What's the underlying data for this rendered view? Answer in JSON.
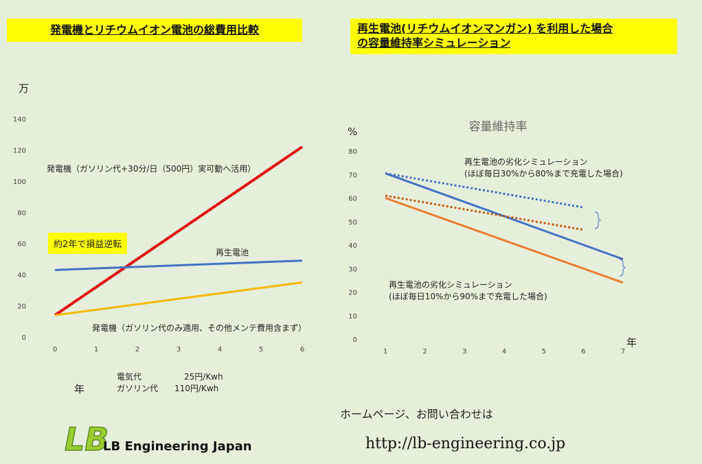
{
  "left_title": "発電機とリチウムイオン電池の総費用比較",
  "right_title_line1": "再生電池(リチウムイオンマンガン) を利用した場合",
  "right_title_line2": "の容量維持率シミュレーション",
  "unit_man": "万",
  "unit_nen_left": "年",
  "unit_pct": "%",
  "unit_nen_right": "年",
  "break_even_note": "約2年で損益逆転",
  "price_electric_label": "電気代",
  "price_electric_value": "25円/Kwh",
  "price_gasoline_label": "ガソリン代",
  "price_gasoline_value": "110円/Kwh",
  "home_text": "ホームページ、お問い合わせは",
  "url_text": "http://lb-engineering.co.jp",
  "logo_text": "LB Engineering Japan",
  "chart_data": [
    {
      "type": "line",
      "title": "発電機とリチウムイオン電池の総費用比較",
      "xlabel": "年",
      "ylabel": "万",
      "x": [
        0,
        1,
        2,
        3,
        4,
        5,
        6
      ],
      "ylim": [
        0,
        140
      ],
      "yticks": [
        0,
        20,
        40,
        60,
        80,
        100,
        120,
        140
      ],
      "grid": false,
      "series": [
        {
          "name": "発電機（ガソリン代+30分/日（500円）実可動へ活用）",
          "color": "#e01010",
          "start": [
            0,
            14
          ],
          "end": [
            6,
            122
          ]
        },
        {
          "name": "再生電池",
          "color": "#4472c4",
          "points": [
            [
              0,
              43
            ],
            [
              1,
              44
            ],
            [
              2,
              45
            ],
            [
              3,
              46
            ],
            [
              4,
              47
            ],
            [
              5,
              48
            ],
            [
              6,
              49
            ]
          ]
        },
        {
          "name": "発電機（ガソリン代のみ適用、その他メンテ費用含まず）",
          "color": "#f5b800",
          "start": [
            0,
            14
          ],
          "end": [
            6,
            35
          ]
        }
      ],
      "annotations": [
        "約2年で損益逆転"
      ]
    },
    {
      "type": "line",
      "title": "容量維持率",
      "xlabel": "年",
      "ylabel": "%",
      "x": [
        1,
        2,
        3,
        4,
        5,
        6,
        7
      ],
      "ylim": [
        0,
        80
      ],
      "yticks": [
        0,
        10,
        20,
        30,
        40,
        50,
        60,
        70,
        80
      ],
      "grid": false,
      "series": [
        {
          "color": "#4472c4",
          "style": "solid",
          "start": [
            1,
            70.5
          ],
          "end": [
            7,
            34
          ]
        },
        {
          "color": "#4472c4",
          "style": "dotted",
          "start": [
            1,
            70.5
          ],
          "end": [
            6,
            56
          ]
        },
        {
          "color": "#ed7d31",
          "style": "solid",
          "start": [
            1,
            60
          ],
          "end": [
            7,
            24
          ]
        },
        {
          "color": "#c55a11",
          "style": "dotted",
          "start": [
            1,
            61
          ],
          "end": [
            6,
            46.5
          ]
        }
      ],
      "annotations": [
        "再生電池の劣化シミュレーション",
        "(ほぼ毎日30%から80%まで充電した場合)",
        "再生電池の劣化シミュレーション",
        "(ほぼ毎日10%から90%まで充電した場合)"
      ]
    }
  ]
}
